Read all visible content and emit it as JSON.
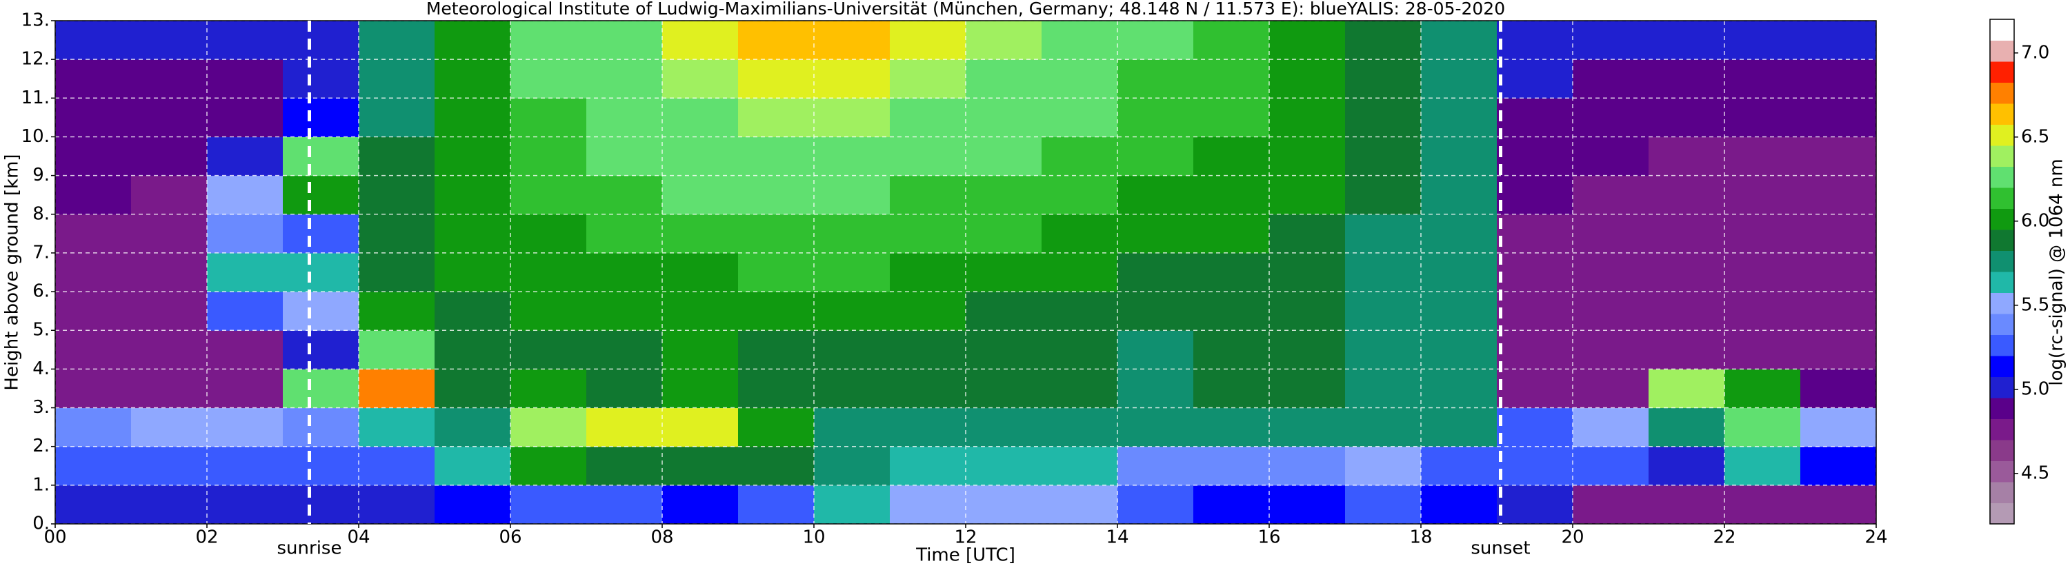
{
  "chart_data": {
    "type": "heatmap",
    "title": "Meteorological Institute of Ludwig-Maximilians-Universität (München, Germany; 48.148 N / 11.573 E):    blueYALIS: 28-05-2020",
    "xlabel": "Time [UTC]",
    "ylabel": "Height above ground [km]",
    "xbins": [
      0,
      1,
      2,
      3,
      4,
      5,
      6,
      7,
      8,
      9,
      10,
      11,
      12,
      13,
      14,
      15,
      16,
      17,
      18,
      19,
      20,
      21,
      22,
      23,
      24
    ],
    "ybins": [
      0,
      1,
      2,
      3,
      4,
      5,
      6,
      7,
      8,
      9,
      10,
      11,
      12,
      13
    ],
    "values": [
      [
        5.0,
        5.0,
        5.0,
        5.0,
        5.0,
        5.1,
        5.3,
        5.2,
        5.1,
        5.3,
        5.6,
        5.5,
        5.5,
        5.5,
        5.2,
        5.1,
        5.1,
        5.2,
        5.1,
        5.0,
        4.8,
        4.7,
        4.8,
        4.8
      ],
      [
        5.2,
        5.2,
        5.2,
        5.3,
        5.3,
        5.6,
        6.0,
        5.9,
        5.9,
        5.9,
        5.7,
        5.6,
        5.6,
        5.6,
        5.4,
        5.4,
        5.4,
        5.5,
        5.3,
        5.2,
        5.2,
        5.0,
        5.6,
        5.1
      ],
      [
        5.4,
        5.5,
        5.5,
        5.4,
        5.6,
        5.7,
        6.4,
        6.5,
        6.5,
        6.0,
        5.8,
        5.7,
        5.7,
        5.7,
        5.8,
        5.8,
        5.8,
        5.8,
        5.7,
        5.2,
        5.5,
        5.8,
        6.2,
        5.5
      ],
      [
        4.8,
        4.8,
        4.8,
        6.2,
        6.8,
        5.9,
        6.0,
        5.9,
        6.0,
        5.9,
        5.9,
        5.9,
        5.9,
        5.9,
        5.8,
        5.9,
        5.9,
        5.8,
        5.8,
        4.8,
        4.8,
        6.4,
        6.0,
        4.9
      ],
      [
        4.7,
        4.7,
        4.8,
        5.0,
        6.3,
        5.9,
        5.9,
        5.9,
        6.0,
        5.9,
        5.9,
        5.9,
        5.9,
        5.9,
        5.8,
        5.9,
        5.9,
        5.8,
        5.7,
        4.8,
        4.7,
        4.7,
        4.7,
        4.7
      ],
      [
        4.7,
        4.7,
        5.3,
        5.5,
        6.0,
        5.9,
        6.0,
        6.0,
        6.0,
        6.0,
        6.0,
        6.0,
        5.9,
        5.9,
        5.9,
        5.9,
        5.9,
        5.8,
        5.7,
        4.8,
        4.7,
        4.7,
        4.7,
        4.7
      ],
      [
        4.7,
        4.7,
        5.6,
        5.6,
        5.9,
        6.0,
        6.0,
        6.0,
        6.0,
        6.1,
        6.1,
        6.0,
        6.0,
        6.0,
        5.9,
        5.9,
        5.9,
        5.8,
        5.7,
        4.8,
        4.7,
        4.7,
        4.7,
        4.7
      ],
      [
        4.8,
        4.8,
        5.4,
        5.3,
        5.9,
        6.0,
        6.0,
        6.1,
        6.1,
        6.1,
        6.1,
        6.1,
        6.1,
        6.0,
        6.0,
        6.0,
        5.9,
        5.8,
        5.7,
        4.8,
        4.8,
        4.7,
        4.7,
        4.7
      ],
      [
        4.9,
        4.8,
        5.5,
        6.0,
        5.9,
        6.0,
        6.1,
        6.1,
        6.2,
        6.2,
        6.2,
        6.1,
        6.1,
        6.1,
        6.0,
        6.0,
        6.0,
        5.9,
        5.8,
        4.9,
        4.8,
        4.8,
        4.8,
        4.8
      ],
      [
        4.9,
        4.9,
        5.0,
        6.2,
        5.9,
        6.0,
        6.1,
        6.2,
        6.2,
        6.3,
        6.3,
        6.2,
        6.2,
        6.1,
        6.1,
        6.0,
        6.0,
        5.9,
        5.8,
        4.9,
        4.9,
        4.8,
        4.8,
        4.8
      ],
      [
        4.9,
        4.9,
        4.9,
        5.1,
        5.8,
        6.0,
        6.1,
        6.2,
        6.3,
        6.4,
        6.4,
        6.3,
        6.3,
        6.2,
        6.1,
        6.1,
        6.0,
        5.9,
        5.8,
        4.9,
        4.9,
        4.9,
        4.9,
        4.9
      ],
      [
        4.9,
        4.9,
        4.9,
        5.0,
        5.8,
        6.0,
        6.2,
        6.3,
        6.4,
        6.5,
        6.5,
        6.4,
        6.3,
        6.2,
        6.1,
        6.1,
        6.0,
        5.9,
        5.8,
        5.0,
        4.9,
        4.9,
        4.9,
        4.9
      ],
      [
        5.0,
        5.0,
        5.0,
        5.0,
        5.8,
        6.0,
        6.2,
        6.3,
        6.5,
        6.6,
        6.6,
        6.5,
        6.4,
        6.3,
        6.2,
        6.1,
        6.0,
        5.9,
        5.8,
        5.0,
        5.0,
        5.0,
        5.0,
        5.0
      ]
    ],
    "xlim": [
      0,
      24
    ],
    "xticks": [
      {
        "value": 0,
        "label": "00"
      },
      {
        "value": 2,
        "label": "02"
      },
      {
        "value": 4,
        "label": "04"
      },
      {
        "value": 6,
        "label": "06"
      },
      {
        "value": 8,
        "label": "08"
      },
      {
        "value": 10,
        "label": "10"
      },
      {
        "value": 12,
        "label": "12"
      },
      {
        "value": 14,
        "label": "14"
      },
      {
        "value": 16,
        "label": "16"
      },
      {
        "value": 18,
        "label": "18"
      },
      {
        "value": 20,
        "label": "20"
      },
      {
        "value": 22,
        "label": "22"
      },
      {
        "value": 24,
        "label": "24"
      }
    ],
    "ylim": [
      0,
      13
    ],
    "yticks": [
      {
        "value": 0,
        "label": "0."
      },
      {
        "value": 1,
        "label": "1."
      },
      {
        "value": 2,
        "label": "2."
      },
      {
        "value": 3,
        "label": "3."
      },
      {
        "value": 4,
        "label": "4."
      },
      {
        "value": 5,
        "label": "5."
      },
      {
        "value": 6,
        "label": "6."
      },
      {
        "value": 7,
        "label": "7."
      },
      {
        "value": 8,
        "label": "8."
      },
      {
        "value": 9,
        "label": "9."
      },
      {
        "value": 10,
        "label": "10."
      },
      {
        "value": 11,
        "label": "11."
      },
      {
        "value": 12,
        "label": "12."
      },
      {
        "value": 13,
        "label": "13."
      }
    ],
    "grid": true,
    "annotations": [
      {
        "text": "sunrise",
        "x": 3.35
      },
      {
        "text": "sunset",
        "x": 19.05
      }
    ],
    "colorbar": {
      "label": "log(rc-signal) @ 1064 nm",
      "lim": [
        4.2,
        7.2
      ],
      "ticks": [
        4.5,
        {
          "value": 5,
          "label": "5.0"
        },
        5.5,
        {
          "value": 6,
          "label": "6.0"
        },
        6.5,
        {
          "value": 7,
          "label": "7.0"
        }
      ],
      "colors": [
        "#b49ab4",
        "#a680a6",
        "#9a5a9a",
        "#8a3a8a",
        "#7a1a8a",
        "#5a008a",
        "#2020d0",
        "#0000ff",
        "#3a5aff",
        "#6a8aff",
        "#8fa8ff",
        "#20b8a8",
        "#109070",
        "#107830",
        "#109a10",
        "#30c030",
        "#60e070",
        "#a0f060",
        "#e0f020",
        "#ffc000",
        "#ff8000",
        "#ff2000",
        "#e8b0b0",
        "#ffffff"
      ]
    }
  }
}
